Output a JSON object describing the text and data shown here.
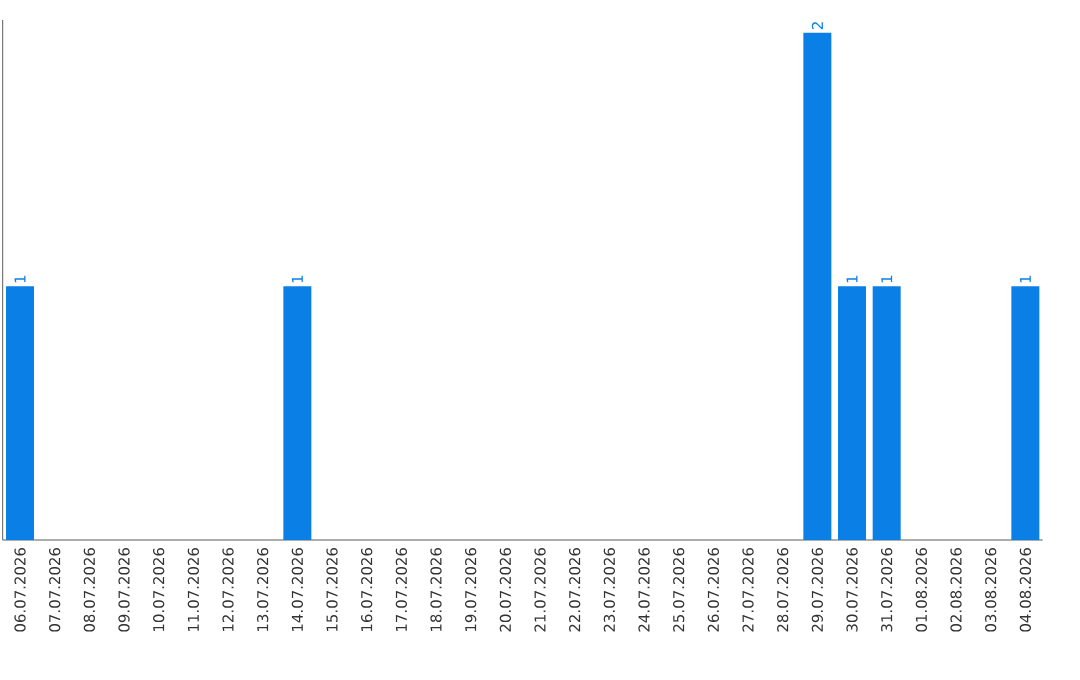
{
  "chart_data": {
    "type": "bar",
    "categories": [
      "06.07.2026",
      "07.07.2026",
      "08.07.2026",
      "09.07.2026",
      "10.07.2026",
      "11.07.2026",
      "12.07.2026",
      "13.07.2026",
      "14.07.2026",
      "15.07.2026",
      "16.07.2026",
      "17.07.2026",
      "18.07.2026",
      "19.07.2026",
      "20.07.2026",
      "21.07.2026",
      "22.07.2026",
      "23.07.2026",
      "24.07.2026",
      "25.07.2026",
      "26.07.2026",
      "27.07.2026",
      "28.07.2026",
      "29.07.2026",
      "30.07.2026",
      "31.07.2026",
      "01.08.2026",
      "02.08.2026",
      "03.08.2026",
      "04.08.2026"
    ],
    "values": [
      1,
      0,
      0,
      0,
      0,
      0,
      0,
      0,
      1,
      0,
      0,
      0,
      0,
      0,
      0,
      0,
      0,
      0,
      0,
      0,
      0,
      0,
      0,
      2,
      1,
      1,
      0,
      0,
      0,
      1
    ],
    "value_labels": [
      "1",
      null,
      null,
      null,
      null,
      null,
      null,
      null,
      "1",
      null,
      null,
      null,
      null,
      null,
      null,
      null,
      null,
      null,
      null,
      null,
      null,
      null,
      null,
      "2",
      "1",
      "1",
      null,
      null,
      null,
      "1"
    ],
    "color": "#0a7fe6",
    "ylim": [
      0,
      2.05
    ],
    "tick_labels": "x"
  }
}
